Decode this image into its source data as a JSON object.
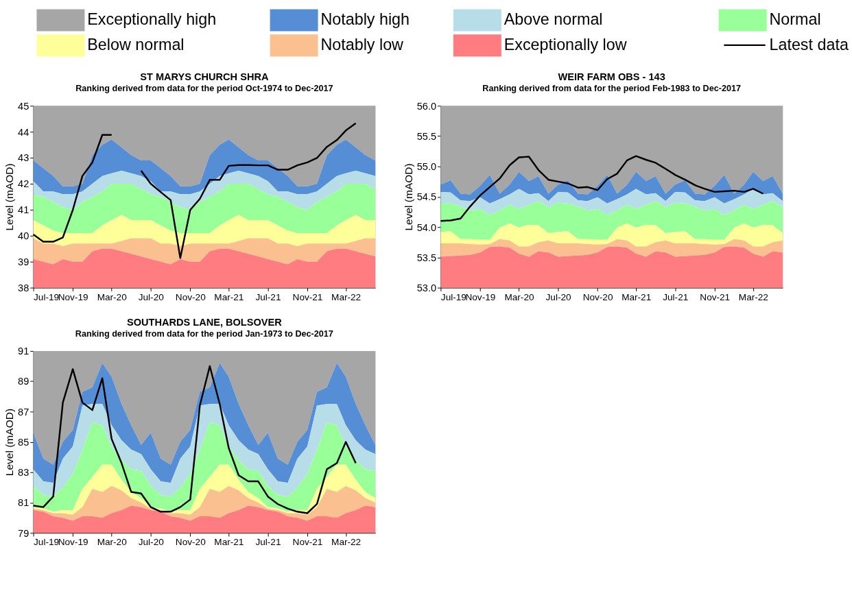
{
  "chart_data": [
    {
      "type": "area",
      "title": "ST MARYS CHURCH SHRA",
      "subtitle": "Ranking derived from data for the period Oct-1974 to Dec-2017",
      "ylabel": "Level (mAOD)",
      "legend": "top",
      "grid": false,
      "x": [
        "2019-07",
        "2019-08",
        "2019-09",
        "2019-10",
        "2019-11",
        "2019-12",
        "2020-01",
        "2020-02",
        "2020-03",
        "2020-04",
        "2020-05",
        "2020-06",
        "2020-07",
        "2020-08",
        "2020-09",
        "2020-10",
        "2020-11",
        "2020-12",
        "2021-01",
        "2021-02",
        "2021-03",
        "2021-04",
        "2021-05",
        "2021-06",
        "2021-07",
        "2021-08",
        "2021-09",
        "2021-10",
        "2021-11",
        "2021-12",
        "2022-01",
        "2022-02",
        "2022-03",
        "2022-04",
        "2022-05",
        "2022-06"
      ],
      "xlim": [
        "2019-07",
        "2022-06"
      ],
      "xticks": [
        {
          "value": "2019-07",
          "label": "Jul-19"
        },
        {
          "value": "2019-11",
          "label": "Nov-19"
        },
        {
          "value": "2020-03",
          "label": "Mar-20"
        },
        {
          "value": "2020-07",
          "label": "Jul-20"
        },
        {
          "value": "2020-11",
          "label": "Nov-20"
        },
        {
          "value": "2021-03",
          "label": "Mar-21"
        },
        {
          "value": "2021-07",
          "label": "Jul-21"
        },
        {
          "value": "2021-11",
          "label": "Nov-21"
        },
        {
          "value": "2022-03",
          "label": "Mar-22"
        }
      ],
      "ylim": [
        38,
        45
      ],
      "yticks": [
        38,
        39,
        40,
        41,
        42,
        43,
        44,
        45
      ],
      "series": [
        {
          "name": "Exceptionally high",
          "color": "#a6a6a6",
          "values": [
            45,
            45,
            45,
            45,
            45,
            45,
            45,
            45,
            45,
            45,
            45,
            45,
            45,
            45,
            45,
            45,
            45,
            45,
            45,
            45,
            45,
            45,
            45,
            45,
            45,
            45,
            45,
            45,
            45,
            45,
            45,
            45,
            45,
            45,
            45,
            45
          ]
        },
        {
          "name": "Notably high",
          "color": "#558ed5",
          "values": [
            42.9,
            42.6,
            42.3,
            41.9,
            41.9,
            42.0,
            43.1,
            43.5,
            43.7,
            43.4,
            43.1,
            42.9,
            42.9,
            42.6,
            42.3,
            41.9,
            41.9,
            42.0,
            43.1,
            43.5,
            43.7,
            43.4,
            43.1,
            42.9,
            42.9,
            42.6,
            42.3,
            41.9,
            41.9,
            42.0,
            43.1,
            43.5,
            43.7,
            43.4,
            43.1,
            42.9
          ]
        },
        {
          "name": "Above normal",
          "color": "#b7dde8",
          "values": [
            42.1,
            41.7,
            41.7,
            41.6,
            41.6,
            41.7,
            42.0,
            42.3,
            42.4,
            42.5,
            42.4,
            42.3,
            42.1,
            41.7,
            41.7,
            41.6,
            41.6,
            41.7,
            42.0,
            42.3,
            42.4,
            42.5,
            42.4,
            42.3,
            42.1,
            41.7,
            41.7,
            41.6,
            41.6,
            41.7,
            42.0,
            42.3,
            42.4,
            42.5,
            42.4,
            42.3
          ]
        },
        {
          "name": "Normal",
          "color": "#99ff99",
          "values": [
            41.6,
            41.5,
            41.3,
            41.1,
            41.0,
            41.3,
            41.5,
            41.7,
            42.0,
            42.0,
            42.0,
            41.8,
            41.6,
            41.5,
            41.3,
            41.1,
            41.0,
            41.3,
            41.5,
            41.7,
            42.0,
            42.0,
            42.0,
            41.8,
            41.6,
            41.5,
            41.3,
            41.1,
            41.0,
            41.3,
            41.5,
            41.7,
            42.0,
            42.0,
            42.0,
            41.8
          ]
        },
        {
          "name": "Below normal",
          "color": "#ffff99",
          "values": [
            40.6,
            40.4,
            40.2,
            40.1,
            40.1,
            40.1,
            40.1,
            40.4,
            40.6,
            40.8,
            40.6,
            40.6,
            40.6,
            40.4,
            40.2,
            40.1,
            40.1,
            40.1,
            40.1,
            40.4,
            40.6,
            40.8,
            40.6,
            40.6,
            40.6,
            40.4,
            40.2,
            40.1,
            40.1,
            40.1,
            40.1,
            40.4,
            40.6,
            40.8,
            40.6,
            40.6
          ]
        },
        {
          "name": "Notably low",
          "color": "#fac090",
          "values": [
            39.9,
            39.7,
            39.7,
            39.6,
            39.7,
            39.7,
            39.7,
            39.7,
            39.7,
            39.8,
            39.9,
            39.9,
            39.9,
            39.7,
            39.7,
            39.6,
            39.7,
            39.7,
            39.7,
            39.7,
            39.7,
            39.8,
            39.9,
            39.9,
            39.9,
            39.7,
            39.7,
            39.6,
            39.7,
            39.7,
            39.7,
            39.7,
            39.7,
            39.8,
            39.9,
            39.9
          ]
        },
        {
          "name": "Exceptionally low",
          "color": "#ff7c80",
          "values": [
            39.1,
            39.0,
            38.9,
            39.1,
            39.0,
            39.0,
            39.4,
            39.5,
            39.5,
            39.4,
            39.3,
            39.2,
            39.1,
            39.0,
            38.9,
            39.1,
            39.0,
            39.0,
            39.4,
            39.5,
            39.5,
            39.4,
            39.3,
            39.2,
            39.1,
            39.0,
            38.9,
            39.1,
            39.0,
            39.0,
            39.4,
            39.5,
            39.5,
            39.4,
            39.3,
            39.2
          ]
        },
        {
          "name": "Latest data",
          "type": "line",
          "color": "#000000",
          "values": [
            40.05,
            39.77,
            39.77,
            39.93,
            40.99,
            42.3,
            42.82,
            43.88,
            43.88,
            null,
            null,
            42.5,
            42.0,
            41.68,
            41.37,
            39.14,
            40.99,
            41.42,
            42.15,
            42.15,
            42.69,
            42.72,
            42.72,
            42.71,
            42.71,
            42.54,
            42.54,
            42.71,
            42.82,
            42.99,
            43.42,
            43.68,
            44.05,
            44.33,
            null,
            null
          ]
        }
      ]
    },
    {
      "type": "area",
      "title": "WEIR FARM OBS - 143",
      "subtitle": "Ranking derived from data for the period Feb-1983 to Dec-2017",
      "ylabel": "Level (mAOD)",
      "grid": false,
      "x": [
        "2019-07",
        "2019-08",
        "2019-09",
        "2019-10",
        "2019-11",
        "2019-12",
        "2020-01",
        "2020-02",
        "2020-03",
        "2020-04",
        "2020-05",
        "2020-06",
        "2020-07",
        "2020-08",
        "2020-09",
        "2020-10",
        "2020-11",
        "2020-12",
        "2021-01",
        "2021-02",
        "2021-03",
        "2021-04",
        "2021-05",
        "2021-06",
        "2021-07",
        "2021-08",
        "2021-09",
        "2021-10",
        "2021-11",
        "2021-12",
        "2022-01",
        "2022-02",
        "2022-03",
        "2022-04",
        "2022-05",
        "2022-06"
      ],
      "xlim": [
        "2019-07",
        "2022-06"
      ],
      "xticks": [
        {
          "value": "2019-07",
          "label": "Jul-19"
        },
        {
          "value": "2019-11",
          "label": "Nov-19"
        },
        {
          "value": "2020-03",
          "label": "Mar-20"
        },
        {
          "value": "2020-07",
          "label": "Jul-20"
        },
        {
          "value": "2020-11",
          "label": "Nov-20"
        },
        {
          "value": "2021-03",
          "label": "Mar-21"
        },
        {
          "value": "2021-07",
          "label": "Jul-21"
        },
        {
          "value": "2021-11",
          "label": "Nov-21"
        },
        {
          "value": "2022-03",
          "label": "Mar-22"
        }
      ],
      "ylim": [
        53,
        56
      ],
      "yticks": [
        {
          "value": 53,
          "label": "53.0"
        },
        53.5,
        {
          "value": 54,
          "label": "54.0"
        },
        54.5,
        {
          "value": 55,
          "label": "55.0"
        },
        55.5,
        {
          "value": 56,
          "label": "56.0"
        }
      ],
      "series": [
        {
          "name": "Exceptionally high",
          "color": "#a6a6a6",
          "values": [
            56,
            56,
            56,
            56,
            56,
            56,
            56,
            56,
            56,
            56,
            56,
            56,
            56,
            56,
            56,
            56,
            56,
            56,
            56,
            56,
            56,
            56,
            56,
            56,
            56,
            56,
            56,
            56,
            56,
            56,
            56,
            56,
            56,
            56,
            56,
            56
          ]
        },
        {
          "name": "Notably high",
          "color": "#558ed5",
          "values": [
            54.7,
            54.77,
            54.55,
            54.54,
            54.68,
            54.86,
            54.55,
            54.7,
            54.91,
            54.76,
            54.84,
            54.55,
            54.7,
            54.77,
            54.55,
            54.54,
            54.68,
            54.86,
            54.55,
            54.7,
            54.91,
            54.76,
            54.84,
            54.55,
            54.7,
            54.77,
            54.55,
            54.54,
            54.68,
            54.86,
            54.55,
            54.7,
            54.91,
            54.76,
            54.84,
            54.55
          ]
        },
        {
          "name": "Above normal",
          "color": "#b7dde8",
          "values": [
            54.58,
            54.57,
            54.44,
            54.43,
            54.49,
            54.39,
            54.46,
            54.54,
            54.63,
            54.54,
            54.56,
            54.43,
            54.58,
            54.57,
            54.44,
            54.43,
            54.49,
            54.39,
            54.46,
            54.54,
            54.63,
            54.54,
            54.56,
            54.43,
            54.58,
            54.57,
            54.44,
            54.43,
            54.49,
            54.39,
            54.46,
            54.54,
            54.63,
            54.54,
            54.56,
            54.43
          ]
        },
        {
          "name": "Normal",
          "color": "#99ff99",
          "values": [
            54.4,
            54.39,
            54.34,
            54.27,
            54.3,
            54.2,
            54.28,
            54.37,
            54.3,
            54.37,
            54.43,
            54.33,
            54.4,
            54.39,
            54.34,
            54.27,
            54.3,
            54.2,
            54.28,
            54.37,
            54.3,
            54.37,
            54.43,
            54.33,
            54.4,
            54.39,
            54.34,
            54.27,
            54.3,
            54.2,
            54.28,
            54.37,
            54.3,
            54.37,
            54.43,
            54.33
          ]
        },
        {
          "name": "Below normal",
          "color": "#ffff99",
          "values": [
            53.92,
            53.93,
            53.8,
            53.8,
            53.79,
            53.79,
            53.99,
            54.06,
            53.99,
            54.04,
            54.03,
            53.9,
            53.92,
            53.93,
            53.8,
            53.8,
            53.79,
            53.79,
            53.99,
            54.06,
            53.99,
            54.04,
            54.03,
            53.9,
            53.92,
            53.93,
            53.8,
            53.8,
            53.79,
            53.79,
            53.99,
            54.06,
            53.99,
            54.04,
            54.03,
            53.9
          ]
        },
        {
          "name": "Notably low",
          "color": "#fac090",
          "values": [
            53.73,
            53.73,
            53.73,
            53.72,
            53.71,
            53.72,
            53.8,
            53.78,
            53.68,
            53.68,
            53.75,
            53.78,
            53.73,
            53.73,
            53.73,
            53.72,
            53.71,
            53.72,
            53.8,
            53.78,
            53.68,
            53.68,
            53.75,
            53.78,
            53.73,
            53.73,
            53.73,
            53.72,
            53.71,
            53.72,
            53.8,
            53.78,
            53.68,
            53.68,
            53.75,
            53.78
          ]
        },
        {
          "name": "Exceptionally low",
          "color": "#ff7c80",
          "values": [
            53.51,
            53.52,
            53.53,
            53.54,
            53.58,
            53.67,
            53.68,
            53.66,
            53.56,
            53.51,
            53.6,
            53.58,
            53.51,
            53.52,
            53.53,
            53.54,
            53.58,
            53.67,
            53.68,
            53.66,
            53.56,
            53.51,
            53.6,
            53.58,
            53.51,
            53.52,
            53.53,
            53.54,
            53.58,
            53.67,
            53.68,
            53.66,
            53.56,
            53.51,
            53.6,
            53.58
          ]
        },
        {
          "name": "Latest data",
          "type": "line",
          "color": "#000000",
          "values": [
            54.1,
            54.11,
            54.14,
            54.34,
            54.52,
            54.66,
            54.8,
            55.02,
            55.15,
            55.16,
            54.94,
            54.78,
            54.75,
            54.72,
            54.65,
            54.66,
            54.61,
            54.79,
            54.88,
            55.1,
            55.17,
            55.11,
            55.06,
            54.96,
            54.86,
            54.78,
            54.69,
            54.63,
            54.58,
            54.59,
            54.6,
            54.58,
            54.63,
            54.55,
            null,
            null
          ]
        }
      ]
    },
    {
      "type": "area",
      "title": "SOUTHARDS LANE, BOLSOVER",
      "subtitle": "Ranking derived from data for the period Jan-1973 to Dec-2017",
      "ylabel": "Level (mAOD)",
      "grid": false,
      "x": [
        "2019-07",
        "2019-08",
        "2019-09",
        "2019-10",
        "2019-11",
        "2019-12",
        "2020-01",
        "2020-02",
        "2020-03",
        "2020-04",
        "2020-05",
        "2020-06",
        "2020-07",
        "2020-08",
        "2020-09",
        "2020-10",
        "2020-11",
        "2020-12",
        "2021-01",
        "2021-02",
        "2021-03",
        "2021-04",
        "2021-05",
        "2021-06",
        "2021-07",
        "2021-08",
        "2021-09",
        "2021-10",
        "2021-11",
        "2021-12",
        "2022-01",
        "2022-02",
        "2022-03",
        "2022-04",
        "2022-05",
        "2022-06"
      ],
      "xlim": [
        "2019-07",
        "2022-06"
      ],
      "xticks": [
        {
          "value": "2019-07",
          "label": "Jul-19"
        },
        {
          "value": "2019-11",
          "label": "Nov-19"
        },
        {
          "value": "2020-03",
          "label": "Mar-20"
        },
        {
          "value": "2020-07",
          "label": "Jul-20"
        },
        {
          "value": "2020-11",
          "label": "Nov-20"
        },
        {
          "value": "2021-03",
          "label": "Mar-21"
        },
        {
          "value": "2021-07",
          "label": "Jul-21"
        },
        {
          "value": "2021-11",
          "label": "Nov-21"
        },
        {
          "value": "2022-03",
          "label": "Mar-22"
        }
      ],
      "ylim": [
        79,
        91
      ],
      "yticks": [
        79,
        81,
        83,
        85,
        87,
        89,
        91
      ],
      "series": [
        {
          "name": "Exceptionally high",
          "color": "#a6a6a6",
          "values": [
            91,
            91,
            91,
            91,
            91,
            91,
            91,
            91,
            91,
            91,
            91,
            91,
            91,
            91,
            91,
            91,
            91,
            91,
            91,
            91,
            91,
            91,
            91,
            91,
            91,
            91,
            91,
            91,
            91,
            91,
            91,
            91,
            91,
            91,
            91,
            91
          ]
        },
        {
          "name": "Notably high",
          "color": "#558ed5",
          "values": [
            85.6,
            83.9,
            83.5,
            85.0,
            85.8,
            88.3,
            88.6,
            90.2,
            89.3,
            87.5,
            86.1,
            84.8,
            85.6,
            83.9,
            83.5,
            85.0,
            85.8,
            88.3,
            88.6,
            90.2,
            89.3,
            87.5,
            86.1,
            84.8,
            85.6,
            83.9,
            83.5,
            85.0,
            85.8,
            88.3,
            88.6,
            90.2,
            89.3,
            87.5,
            86.1,
            84.8
          ]
        },
        {
          "name": "Above normal",
          "color": "#b7dde8",
          "values": [
            83.2,
            82.4,
            82.3,
            83.9,
            84.7,
            87.4,
            87.5,
            87.5,
            86.1,
            85.1,
            84.5,
            84.2,
            83.2,
            82.4,
            82.3,
            83.9,
            84.7,
            87.4,
            87.5,
            87.5,
            86.1,
            85.1,
            84.5,
            84.2,
            83.2,
            82.4,
            82.3,
            83.9,
            84.7,
            87.4,
            87.5,
            87.5,
            86.1,
            85.1,
            84.5,
            84.2
          ]
        },
        {
          "name": "Normal",
          "color": "#99ff99",
          "values": [
            82.1,
            81.5,
            81.4,
            82.0,
            82.9,
            84.5,
            86.3,
            86.1,
            84.7,
            83.8,
            83.2,
            83.1,
            82.1,
            81.5,
            81.4,
            82.0,
            82.9,
            84.5,
            86.3,
            86.1,
            84.7,
            83.8,
            83.2,
            83.1,
            82.1,
            81.5,
            81.4,
            82.0,
            82.9,
            84.5,
            86.3,
            86.1,
            84.7,
            83.8,
            83.2,
            83.1
          ]
        },
        {
          "name": "Below normal",
          "color": "#ffff99",
          "values": [
            80.7,
            80.6,
            80.4,
            80.5,
            80.5,
            81.9,
            82.7,
            83.5,
            83.5,
            82.5,
            81.7,
            81.3,
            80.7,
            80.6,
            80.4,
            80.5,
            80.5,
            81.9,
            82.7,
            83.5,
            83.5,
            82.5,
            81.7,
            81.3,
            80.7,
            80.6,
            80.4,
            80.5,
            80.5,
            81.9,
            82.7,
            83.5,
            83.5,
            82.5,
            81.7,
            81.3
          ]
        },
        {
          "name": "Notably low",
          "color": "#fac090",
          "values": [
            80.6,
            80.5,
            80.3,
            80.3,
            80.2,
            80.7,
            81.9,
            81.7,
            82.1,
            81.8,
            81.3,
            81.0,
            80.6,
            80.5,
            80.3,
            80.3,
            80.2,
            80.7,
            81.9,
            81.7,
            82.1,
            81.8,
            81.3,
            81.0,
            80.6,
            80.5,
            80.3,
            80.3,
            80.2,
            80.7,
            81.9,
            81.7,
            82.1,
            81.8,
            81.3,
            81.0
          ]
        },
        {
          "name": "Exceptionally low",
          "color": "#ff7c80",
          "values": [
            80.5,
            80.4,
            80.1,
            80.0,
            79.8,
            80.1,
            80.1,
            80.0,
            80.3,
            80.5,
            80.8,
            80.7,
            80.5,
            80.4,
            80.1,
            80.0,
            79.8,
            80.1,
            80.1,
            80.0,
            80.3,
            80.5,
            80.8,
            80.7,
            80.5,
            80.4,
            80.1,
            80.0,
            79.8,
            80.1,
            80.1,
            80.0,
            80.3,
            80.5,
            80.8,
            80.7
          ]
        },
        {
          "name": "Latest data",
          "type": "line",
          "color": "#000000",
          "values": [
            80.8,
            80.7,
            81.4,
            87.6,
            89.8,
            87.6,
            87.1,
            89.2,
            85.2,
            83.6,
            81.7,
            81.6,
            80.7,
            80.4,
            80.4,
            80.7,
            81.2,
            87.4,
            90.0,
            87.5,
            84.6,
            82.8,
            82.4,
            82.4,
            81.4,
            80.9,
            80.6,
            80.4,
            80.3,
            80.9,
            83.2,
            83.6,
            85.0,
            83.6,
            null,
            null
          ]
        }
      ]
    }
  ]
}
